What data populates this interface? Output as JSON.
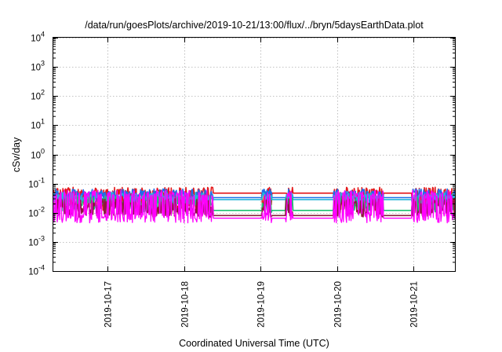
{
  "chart_data": {
    "type": "line",
    "title": "/data/run/goesPlots/archive/2019-10-21/13:00/flux/../bryn/5daysEarthData.plot",
    "xlabel": "Coordinated Universal Time (UTC)",
    "ylabel": "cSv/day",
    "y_scale": "log",
    "ylim": [
      0.0001,
      10000
    ],
    "y_ticks": [
      {
        "base": "10",
        "exp": "-4",
        "value": 0.0001
      },
      {
        "base": "10",
        "exp": "-3",
        "value": 0.001
      },
      {
        "base": "10",
        "exp": "-2",
        "value": 0.01
      },
      {
        "base": "10",
        "exp": "-1",
        "value": 0.1
      },
      {
        "base": "10",
        "exp": "0",
        "value": 1
      },
      {
        "base": "10",
        "exp": "1",
        "value": 10
      },
      {
        "base": "10",
        "exp": "2",
        "value": 100
      },
      {
        "base": "10",
        "exp": "3",
        "value": 1000
      },
      {
        "base": "10",
        "exp": "4",
        "value": 10000
      }
    ],
    "xlim": [
      "2019-10-16T07:00",
      "2019-10-21T13:00"
    ],
    "x_ticks": [
      "2019-10-17",
      "2019-10-18",
      "2019-10-19",
      "2019-10-20",
      "2019-10-21"
    ],
    "grid": true,
    "legend": "none",
    "colors": {
      "red": "#e41a1c",
      "dark_red": "#8b1a3a",
      "green": "#1dbf73",
      "blue": "#1f6fe8",
      "cyan": "#25b6d8",
      "magenta": "#ff00ff"
    },
    "series": [
      {
        "color": "red",
        "upper": 0.075,
        "lower": 0.012,
        "gap_level": 0.047
      },
      {
        "color": "blue",
        "upper": 0.065,
        "lower": 0.02,
        "gap_level": 0.033
      },
      {
        "color": "cyan",
        "upper": 0.05,
        "lower": 0.018,
        "gap_level": 0.028
      },
      {
        "color": "green",
        "upper": 0.035,
        "lower": 0.01,
        "gap_level": 0.012
      },
      {
        "color": "dark_red",
        "upper": 0.03,
        "lower": 0.007,
        "gap_level": 0.008
      },
      {
        "color": "magenta",
        "upper": 0.06,
        "lower": 0.0045,
        "gap_level": 0.0065
      }
    ],
    "data_gaps": [
      [
        "2019-10-18T09:00",
        "2019-10-19T00:30"
      ],
      [
        "2019-10-19T03:30",
        "2019-10-19T08:00"
      ],
      [
        "2019-10-19T10:00",
        "2019-10-19T23:00"
      ],
      [
        "2019-10-20T14:30",
        "2019-10-20T23:30"
      ]
    ]
  }
}
